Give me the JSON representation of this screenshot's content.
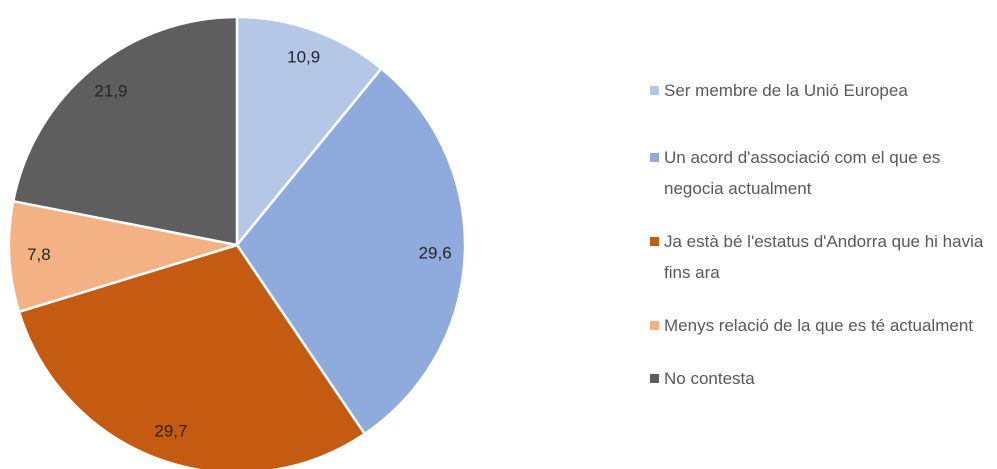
{
  "chart_data": {
    "type": "pie",
    "categories": [
      "Ser membre de la Unió Europea",
      "Un acord d'associació com el que es negocia actualment",
      "Ja està bé l'estatus d'Andorra que hi havia fins ara",
      "Menys relació de la que es té actualment",
      "No contesta"
    ],
    "values": [
      10.9,
      29.6,
      29.7,
      7.8,
      21.9
    ],
    "value_labels": [
      "10,9",
      "29,6",
      "29,7",
      "7,8",
      "21,9"
    ],
    "colors": [
      "#b4c7e7",
      "#8faadc",
      "#c55a11",
      "#f4b183",
      "#5e5e5e"
    ],
    "legend": "right"
  }
}
